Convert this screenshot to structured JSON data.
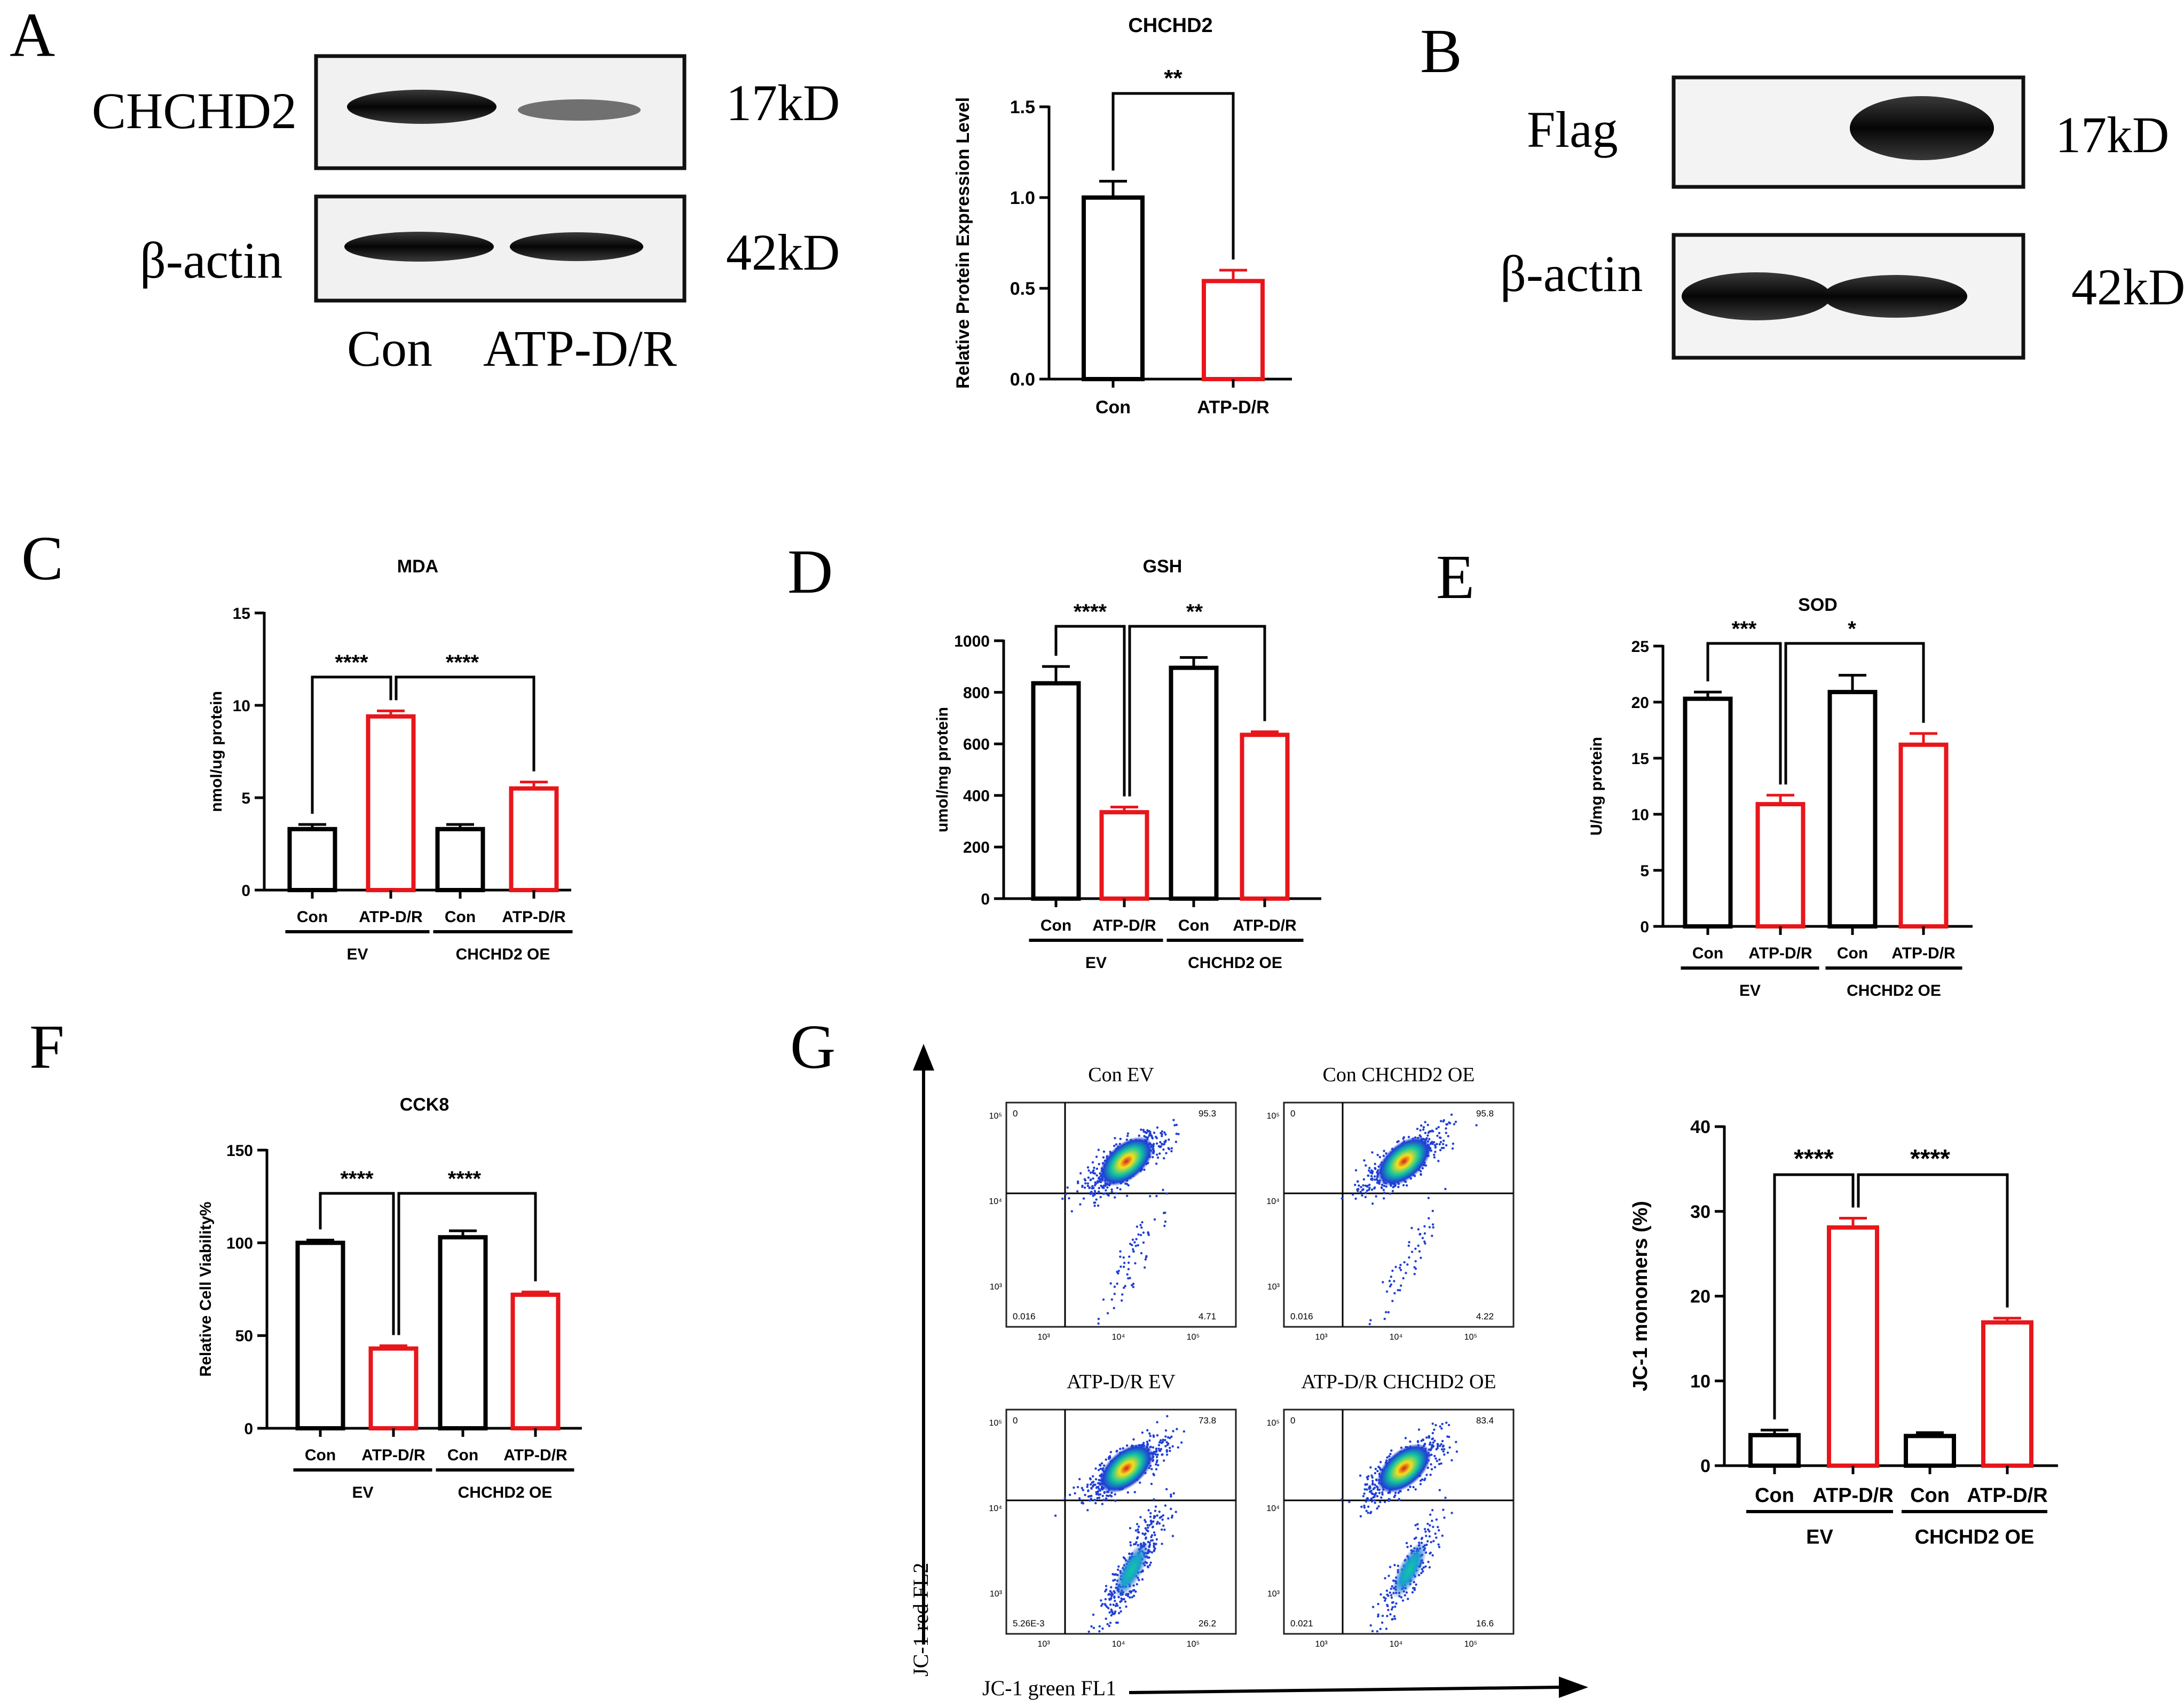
{
  "colors": {
    "black": "#000000",
    "red": "#e8161b",
    "flow_low": "#1f3fd6",
    "flow_mid": "#11c6a0",
    "flow_high": "#f6e01a",
    "flow_peak": "#d21f1f"
  },
  "panels": {
    "A": {
      "label": "A",
      "blot_rows": [
        {
          "protein": "CHCHD2",
          "size": "17kD"
        },
        {
          "protein": "β-actin",
          "size": "42kD"
        }
      ],
      "lanes": [
        "Con",
        "ATP-D/R"
      ]
    },
    "B": {
      "label": "B",
      "blot_rows": [
        {
          "protein": "Flag",
          "size": "17kD"
        },
        {
          "protein": "β-actin",
          "size": "42kD"
        }
      ]
    },
    "C": {
      "label": "C"
    },
    "D": {
      "label": "D"
    },
    "E": {
      "label": "E"
    },
    "F": {
      "label": "F"
    },
    "G": {
      "label": "G",
      "y_axis": "JC-1 red FL2",
      "x_axis": "JC-1 green FL1",
      "flow_plots": [
        {
          "title": "Con EV",
          "q_ul": "0",
          "q_ur": "95.3",
          "q_ll": "0.016",
          "q_lr": "4.71",
          "green_frac": 0.06
        },
        {
          "title": "Con CHCHD2 OE",
          "q_ul": "0",
          "q_ur": "95.8",
          "q_ll": "0.016",
          "q_lr": "4.22",
          "green_frac": 0.05
        },
        {
          "title": "ATP-D/R EV",
          "q_ul": "0",
          "q_ur": "73.8",
          "q_ll": "5.26E-3",
          "q_lr": "26.2",
          "green_frac": 0.3
        },
        {
          "title": "ATP-D/R CHCHD2 OE",
          "q_ul": "0",
          "q_ur": "83.4",
          "q_ll": "0.021",
          "q_lr": "16.6",
          "green_frac": 0.19
        }
      ],
      "flow_ticks": {
        "y": [
          "10⁵",
          "10⁴",
          "10³"
        ],
        "x": [
          "10³",
          "10⁴",
          "10⁵"
        ]
      }
    }
  },
  "chart_data": [
    {
      "id": "A",
      "type": "bar",
      "title": "CHCHD2",
      "ylabel": "Relative  Protein Expression Level",
      "xlabel": "",
      "categories": [
        "Con",
        "ATP-D/R"
      ],
      "values": [
        1.0,
        0.54
      ],
      "errors": [
        0.09,
        0.06
      ],
      "ylim": [
        0,
        1.5
      ],
      "yticks": [
        "0.0",
        "0.5",
        "1.0",
        "1.5"
      ],
      "significance": [
        {
          "from": 0,
          "to": 1,
          "label": "**"
        }
      ]
    },
    {
      "id": "C",
      "type": "bar",
      "title": "MDA",
      "ylabel": "nmol/ug protein",
      "categories": [
        "Con",
        "ATP-D/R",
        "Con",
        "ATP-D/R"
      ],
      "groups": [
        "EV",
        "CHCHD2 OE"
      ],
      "values": [
        3.3,
        9.4,
        3.3,
        5.5
      ],
      "errors": [
        0.25,
        0.3,
        0.25,
        0.35
      ],
      "ylim": [
        0,
        15
      ],
      "yticks": [
        "0",
        "5",
        "10",
        "15"
      ],
      "significance": [
        {
          "from": 0,
          "to": 1,
          "label": "****"
        },
        {
          "from": 1,
          "to": 3,
          "label": "****"
        }
      ]
    },
    {
      "id": "D",
      "type": "bar",
      "title": "GSH",
      "ylabel": "umol/mg protein",
      "categories": [
        "Con",
        "ATP-D/R",
        "Con",
        "ATP-D/R"
      ],
      "groups": [
        "EV",
        "CHCHD2 OE"
      ],
      "values": [
        835,
        335,
        895,
        635
      ],
      "errors": [
        65,
        20,
        40,
        12
      ],
      "ylim": [
        0,
        1000
      ],
      "yticks": [
        "0",
        "200",
        "400",
        "600",
        "800",
        "1000"
      ],
      "significance": [
        {
          "from": 0,
          "to": 1,
          "label": "****"
        },
        {
          "from": 1,
          "to": 3,
          "label": "**"
        }
      ]
    },
    {
      "id": "E",
      "type": "bar",
      "title": "SOD",
      "ylabel": "U/mg protein",
      "categories": [
        "Con",
        "ATP-D/R",
        "Con",
        "ATP-D/R"
      ],
      "groups": [
        "EV",
        "CHCHD2 OE"
      ],
      "values": [
        20.3,
        10.9,
        20.9,
        16.2
      ],
      "errors": [
        0.6,
        0.8,
        1.5,
        1.0
      ],
      "ylim": [
        0,
        25
      ],
      "yticks": [
        "0",
        "5",
        "10",
        "15",
        "20",
        "25"
      ],
      "significance": [
        {
          "from": 0,
          "to": 1,
          "label": "***"
        },
        {
          "from": 1,
          "to": 3,
          "label": "*"
        }
      ]
    },
    {
      "id": "F",
      "type": "bar",
      "title": "CCK8",
      "ylabel": "Relative Cell Viability%",
      "categories": [
        "Con",
        "ATP-D/R",
        "Con",
        "ATP-D/R"
      ],
      "groups": [
        "EV",
        "CHCHD2 OE"
      ],
      "values": [
        100,
        43,
        103,
        72
      ],
      "errors": [
        1.5,
        1.5,
        3.5,
        1.5
      ],
      "ylim": [
        0,
        150
      ],
      "yticks": [
        "0",
        "50",
        "100",
        "150"
      ],
      "significance": [
        {
          "from": 0,
          "to": 1,
          "label": "****"
        },
        {
          "from": 1,
          "to": 3,
          "label": "****"
        }
      ]
    },
    {
      "id": "G",
      "type": "bar",
      "title": "",
      "ylabel": "JC-1 monomers (%)",
      "categories": [
        "Con",
        "ATP-D/R",
        "Con",
        "ATP-D/R"
      ],
      "groups": [
        "EV",
        "CHCHD2 OE"
      ],
      "values": [
        3.6,
        28.1,
        3.5,
        16.9
      ],
      "errors": [
        0.6,
        1.1,
        0.4,
        0.5
      ],
      "ylim": [
        0,
        40
      ],
      "yticks": [
        "0",
        "10",
        "20",
        "30",
        "40"
      ],
      "significance": [
        {
          "from": 0,
          "to": 1,
          "label": "****"
        },
        {
          "from": 1,
          "to": 3,
          "label": "****"
        }
      ]
    }
  ]
}
